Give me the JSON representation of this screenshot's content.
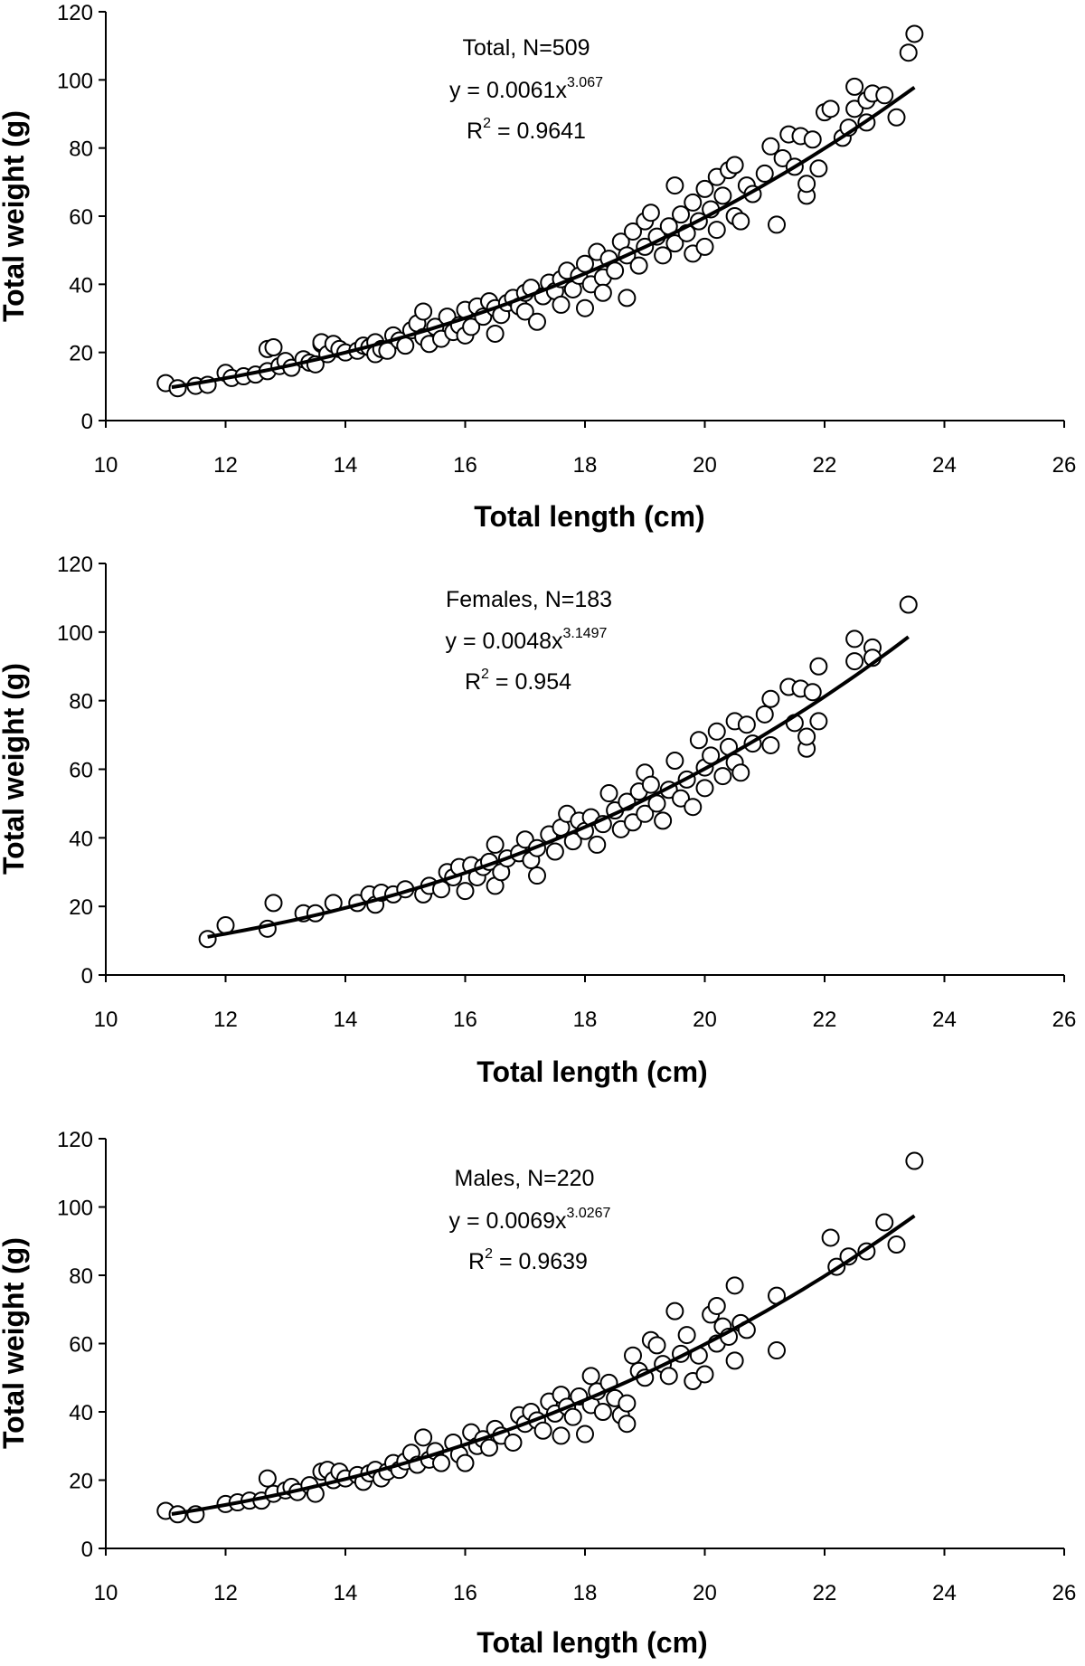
{
  "chart_data": [
    {
      "type": "scatter",
      "annotation": {
        "line1": "Total, N=509",
        "eq_prefix": "y = 0.0061x",
        "eq_exponent": "3.067",
        "r2_prefix": "R",
        "r2_sup": "2",
        "r2_value": " = 0.9641"
      },
      "xlabel": "Total length (cm)",
      "ylabel": "Total weight (g)",
      "xlim": [
        10,
        26
      ],
      "ylim": [
        0,
        120
      ],
      "xticks": [
        "10",
        "12",
        "14",
        "16",
        "18",
        "20",
        "22",
        "24",
        "26"
      ],
      "yticks": [
        "0",
        "20",
        "40",
        "60",
        "80",
        "100",
        "120"
      ],
      "grid": false,
      "fit": {
        "a": 0.0061,
        "b": 3.067,
        "x_range": [
          11.1,
          23.5
        ]
      },
      "points": [
        [
          11.0,
          11.0
        ],
        [
          11.2,
          9.5
        ],
        [
          11.5,
          10.2
        ],
        [
          11.7,
          10.5
        ],
        [
          12.0,
          14.0
        ],
        [
          12.1,
          12.5
        ],
        [
          12.3,
          13.0
        ],
        [
          12.5,
          13.5
        ],
        [
          12.7,
          14.5
        ],
        [
          12.7,
          21.0
        ],
        [
          12.8,
          21.5
        ],
        [
          12.9,
          16.0
        ],
        [
          13.0,
          17.5
        ],
        [
          13.1,
          15.5
        ],
        [
          13.3,
          18.0
        ],
        [
          13.4,
          17.0
        ],
        [
          13.5,
          16.5
        ],
        [
          13.6,
          22.5
        ],
        [
          13.6,
          23.0
        ],
        [
          13.7,
          19.5
        ],
        [
          13.8,
          22.5
        ],
        [
          13.9,
          21.0
        ],
        [
          14.0,
          20.0
        ],
        [
          14.2,
          20.5
        ],
        [
          14.3,
          22.0
        ],
        [
          14.4,
          21.5
        ],
        [
          14.5,
          23.0
        ],
        [
          14.5,
          19.5
        ],
        [
          14.6,
          21.0
        ],
        [
          14.7,
          20.5
        ],
        [
          14.8,
          25.0
        ],
        [
          14.9,
          23.5
        ],
        [
          15.0,
          22.0
        ],
        [
          15.1,
          26.5
        ],
        [
          15.2,
          28.5
        ],
        [
          15.3,
          32.0
        ],
        [
          15.3,
          24.5
        ],
        [
          15.4,
          22.5
        ],
        [
          15.5,
          27.5
        ],
        [
          15.6,
          24.0
        ],
        [
          15.7,
          30.5
        ],
        [
          15.8,
          26.0
        ],
        [
          15.9,
          28.0
        ],
        [
          16.0,
          32.5
        ],
        [
          16.0,
          25.0
        ],
        [
          16.1,
          27.5
        ],
        [
          16.2,
          33.5
        ],
        [
          16.3,
          30.5
        ],
        [
          16.4,
          35.0
        ],
        [
          16.5,
          25.5
        ],
        [
          16.5,
          33.0
        ],
        [
          16.6,
          31.0
        ],
        [
          16.7,
          34.5
        ],
        [
          16.8,
          36.0
        ],
        [
          16.9,
          33.5
        ],
        [
          17.0,
          37.5
        ],
        [
          17.0,
          32.0
        ],
        [
          17.1,
          39.0
        ],
        [
          17.2,
          29.0
        ],
        [
          17.3,
          36.5
        ],
        [
          17.4,
          40.5
        ],
        [
          17.5,
          38.0
        ],
        [
          17.6,
          41.5
        ],
        [
          17.6,
          34.0
        ],
        [
          17.7,
          44.0
        ],
        [
          17.8,
          38.5
        ],
        [
          17.9,
          42.5
        ],
        [
          18.0,
          33.0
        ],
        [
          18.0,
          46.0
        ],
        [
          18.1,
          40.0
        ],
        [
          18.2,
          49.5
        ],
        [
          18.3,
          42.0
        ],
        [
          18.3,
          37.5
        ],
        [
          18.4,
          47.5
        ],
        [
          18.5,
          44.0
        ],
        [
          18.6,
          52.5
        ],
        [
          18.7,
          36.0
        ],
        [
          18.7,
          48.5
        ],
        [
          18.8,
          55.5
        ],
        [
          18.9,
          45.5
        ],
        [
          19.0,
          51.0
        ],
        [
          19.0,
          58.5
        ],
        [
          19.1,
          61.0
        ],
        [
          19.2,
          54.0
        ],
        [
          19.3,
          48.5
        ],
        [
          19.4,
          57.0
        ],
        [
          19.5,
          69.0
        ],
        [
          19.5,
          52.0
        ],
        [
          19.6,
          60.5
        ],
        [
          19.7,
          55.0
        ],
        [
          19.8,
          49.0
        ],
        [
          19.8,
          64.0
        ],
        [
          19.9,
          58.5
        ],
        [
          20.0,
          68.0
        ],
        [
          20.0,
          51.0
        ],
        [
          20.1,
          62.0
        ],
        [
          20.2,
          71.5
        ],
        [
          20.2,
          56.0
        ],
        [
          20.3,
          66.0
        ],
        [
          20.4,
          73.5
        ],
        [
          20.5,
          60.0
        ],
        [
          20.5,
          75.0
        ],
        [
          20.6,
          58.5
        ],
        [
          20.7,
          69.0
        ],
        [
          20.8,
          66.5
        ],
        [
          21.0,
          72.5
        ],
        [
          21.1,
          80.5
        ],
        [
          21.2,
          57.5
        ],
        [
          21.3,
          77.0
        ],
        [
          21.4,
          84.0
        ],
        [
          21.5,
          74.5
        ],
        [
          21.6,
          83.5
        ],
        [
          21.7,
          66.0
        ],
        [
          21.7,
          69.5
        ],
        [
          21.8,
          82.5
        ],
        [
          21.9,
          74.0
        ],
        [
          22.0,
          90.5
        ],
        [
          22.1,
          91.5
        ],
        [
          22.3,
          83.0
        ],
        [
          22.4,
          86.0
        ],
        [
          22.5,
          98.0
        ],
        [
          22.5,
          91.5
        ],
        [
          22.7,
          94.0
        ],
        [
          22.7,
          87.5
        ],
        [
          22.8,
          96.0
        ],
        [
          23.0,
          95.5
        ],
        [
          23.2,
          89.0
        ],
        [
          23.4,
          108.0
        ],
        [
          23.5,
          113.5
        ]
      ]
    },
    {
      "type": "scatter",
      "annotation": {
        "line1": "Females, N=183",
        "eq_prefix": "y = 0.0048x",
        "eq_exponent": "3.1497",
        "r2_prefix": "R",
        "r2_sup": "2",
        "r2_value": " = 0.954"
      },
      "xlabel": "Total length (cm)",
      "ylabel": "Total weight (g)",
      "xlim": [
        10,
        26
      ],
      "ylim": [
        0,
        120
      ],
      "xticks": [
        "10",
        "12",
        "14",
        "16",
        "18",
        "20",
        "22",
        "24",
        "26"
      ],
      "yticks": [
        "0",
        "20",
        "40",
        "60",
        "80",
        "100",
        "120"
      ],
      "grid": false,
      "fit": {
        "a": 0.0048,
        "b": 3.1497,
        "x_range": [
          11.7,
          23.4
        ]
      },
      "points": [
        [
          11.7,
          10.5
        ],
        [
          12.0,
          14.5
        ],
        [
          12.7,
          13.5
        ],
        [
          12.8,
          21.0
        ],
        [
          13.3,
          18.0
        ],
        [
          13.5,
          18.0
        ],
        [
          13.8,
          21.0
        ],
        [
          14.2,
          21.0
        ],
        [
          14.4,
          23.5
        ],
        [
          14.5,
          20.5
        ],
        [
          14.6,
          24.0
        ],
        [
          14.8,
          23.5
        ],
        [
          15.0,
          25.0
        ],
        [
          15.3,
          23.5
        ],
        [
          15.4,
          26.0
        ],
        [
          15.6,
          25.0
        ],
        [
          15.7,
          30.0
        ],
        [
          15.8,
          28.5
        ],
        [
          15.9,
          31.5
        ],
        [
          16.0,
          24.5
        ],
        [
          16.1,
          32.0
        ],
        [
          16.2,
          28.5
        ],
        [
          16.3,
          31.5
        ],
        [
          16.4,
          33.0
        ],
        [
          16.5,
          26.0
        ],
        [
          16.5,
          38.0
        ],
        [
          16.6,
          30.0
        ],
        [
          16.7,
          34.0
        ],
        [
          16.9,
          35.5
        ],
        [
          17.0,
          39.5
        ],
        [
          17.1,
          33.5
        ],
        [
          17.2,
          29.0
        ],
        [
          17.2,
          37.0
        ],
        [
          17.4,
          41.0
        ],
        [
          17.5,
          36.0
        ],
        [
          17.6,
          43.0
        ],
        [
          17.7,
          47.0
        ],
        [
          17.8,
          39.0
        ],
        [
          17.9,
          45.0
        ],
        [
          18.0,
          42.0
        ],
        [
          18.1,
          46.0
        ],
        [
          18.2,
          38.0
        ],
        [
          18.3,
          44.0
        ],
        [
          18.4,
          53.0
        ],
        [
          18.5,
          48.0
        ],
        [
          18.6,
          42.5
        ],
        [
          18.7,
          50.5
        ],
        [
          18.8,
          44.5
        ],
        [
          18.9,
          53.5
        ],
        [
          19.0,
          59.0
        ],
        [
          19.0,
          47.0
        ],
        [
          19.1,
          55.5
        ],
        [
          19.2,
          50.0
        ],
        [
          19.3,
          45.0
        ],
        [
          19.4,
          54.0
        ],
        [
          19.5,
          62.5
        ],
        [
          19.6,
          51.5
        ],
        [
          19.7,
          57.0
        ],
        [
          19.8,
          49.0
        ],
        [
          19.9,
          68.5
        ],
        [
          20.0,
          60.5
        ],
        [
          20.0,
          54.5
        ],
        [
          20.1,
          64.0
        ],
        [
          20.2,
          71.0
        ],
        [
          20.3,
          58.0
        ],
        [
          20.4,
          66.5
        ],
        [
          20.5,
          74.0
        ],
        [
          20.5,
          62.0
        ],
        [
          20.6,
          59.0
        ],
        [
          20.7,
          73.0
        ],
        [
          20.8,
          67.5
        ],
        [
          21.0,
          76.0
        ],
        [
          21.1,
          80.5
        ],
        [
          21.1,
          67.0
        ],
        [
          21.4,
          84.0
        ],
        [
          21.5,
          73.5
        ],
        [
          21.6,
          83.5
        ],
        [
          21.7,
          66.0
        ],
        [
          21.7,
          69.5
        ],
        [
          21.8,
          82.5
        ],
        [
          21.9,
          74.0
        ],
        [
          21.9,
          90.0
        ],
        [
          22.5,
          98.0
        ],
        [
          22.5,
          91.5
        ],
        [
          22.8,
          95.5
        ],
        [
          22.8,
          92.5
        ],
        [
          23.4,
          108.0
        ]
      ]
    },
    {
      "type": "scatter",
      "annotation": {
        "line1": "Males, N=220",
        "eq_prefix": "y = 0.0069x",
        "eq_exponent": "3.0267",
        "r2_prefix": "R",
        "r2_sup": "2",
        "r2_value": " = 0.9639"
      },
      "xlabel": "Total length (cm)",
      "ylabel": "Total weight (g)",
      "xlim": [
        10,
        26
      ],
      "ylim": [
        0,
        120
      ],
      "xticks": [
        "10",
        "12",
        "14",
        "16",
        "18",
        "20",
        "22",
        "24",
        "26"
      ],
      "yticks": [
        "0",
        "20",
        "40",
        "60",
        "80",
        "100",
        "120"
      ],
      "grid": false,
      "fit": {
        "a": 0.0069,
        "b": 3.0267,
        "x_range": [
          11.1,
          23.5
        ]
      },
      "points": [
        [
          11.0,
          11.0
        ],
        [
          11.2,
          10.0
        ],
        [
          11.5,
          10.0
        ],
        [
          12.0,
          13.0
        ],
        [
          12.2,
          13.5
        ],
        [
          12.4,
          14.0
        ],
        [
          12.6,
          14.0
        ],
        [
          12.7,
          20.5
        ],
        [
          12.8,
          16.0
        ],
        [
          13.0,
          17.0
        ],
        [
          13.1,
          18.0
        ],
        [
          13.2,
          16.5
        ],
        [
          13.4,
          18.5
        ],
        [
          13.5,
          16.0
        ],
        [
          13.6,
          22.5
        ],
        [
          13.7,
          23.0
        ],
        [
          13.8,
          20.0
        ],
        [
          13.9,
          22.5
        ],
        [
          14.0,
          20.5
        ],
        [
          14.2,
          21.5
        ],
        [
          14.3,
          19.5
        ],
        [
          14.4,
          22.0
        ],
        [
          14.5,
          23.0
        ],
        [
          14.6,
          20.5
        ],
        [
          14.7,
          22.5
        ],
        [
          14.8,
          25.0
        ],
        [
          14.9,
          23.0
        ],
        [
          15.0,
          25.5
        ],
        [
          15.1,
          28.0
        ],
        [
          15.2,
          24.5
        ],
        [
          15.3,
          32.5
        ],
        [
          15.4,
          26.0
        ],
        [
          15.5,
          28.5
        ],
        [
          15.6,
          25.0
        ],
        [
          15.8,
          31.0
        ],
        [
          15.9,
          27.5
        ],
        [
          16.0,
          25.0
        ],
        [
          16.1,
          34.0
        ],
        [
          16.2,
          30.0
        ],
        [
          16.3,
          32.0
        ],
        [
          16.4,
          29.5
        ],
        [
          16.5,
          35.0
        ],
        [
          16.6,
          33.0
        ],
        [
          16.8,
          31.0
        ],
        [
          16.9,
          39.0
        ],
        [
          17.0,
          36.5
        ],
        [
          17.1,
          40.0
        ],
        [
          17.2,
          37.5
        ],
        [
          17.3,
          34.5
        ],
        [
          17.4,
          43.0
        ],
        [
          17.5,
          39.5
        ],
        [
          17.6,
          33.0
        ],
        [
          17.6,
          45.0
        ],
        [
          17.7,
          41.5
        ],
        [
          17.8,
          38.5
        ],
        [
          17.9,
          44.5
        ],
        [
          18.0,
          33.5
        ],
        [
          18.1,
          42.0
        ],
        [
          18.1,
          50.5
        ],
        [
          18.2,
          46.0
        ],
        [
          18.3,
          40.0
        ],
        [
          18.4,
          48.5
        ],
        [
          18.5,
          44.0
        ],
        [
          18.6,
          39.0
        ],
        [
          18.7,
          36.5
        ],
        [
          18.7,
          42.5
        ],
        [
          18.8,
          56.5
        ],
        [
          18.9,
          52.0
        ],
        [
          19.0,
          50.0
        ],
        [
          19.1,
          61.0
        ],
        [
          19.2,
          59.5
        ],
        [
          19.3,
          54.0
        ],
        [
          19.4,
          50.5
        ],
        [
          19.5,
          69.5
        ],
        [
          19.6,
          57.0
        ],
        [
          19.7,
          62.5
        ],
        [
          19.8,
          49.0
        ],
        [
          19.9,
          56.5
        ],
        [
          20.0,
          51.0
        ],
        [
          20.1,
          68.5
        ],
        [
          20.2,
          71.0
        ],
        [
          20.2,
          60.0
        ],
        [
          20.3,
          65.0
        ],
        [
          20.4,
          62.0
        ],
        [
          20.5,
          55.0
        ],
        [
          20.5,
          77.0
        ],
        [
          20.6,
          66.0
        ],
        [
          20.7,
          64.0
        ],
        [
          21.2,
          74.0
        ],
        [
          21.2,
          58.0
        ],
        [
          22.1,
          91.0
        ],
        [
          22.2,
          82.5
        ],
        [
          22.4,
          85.5
        ],
        [
          22.7,
          87.0
        ],
        [
          23.0,
          95.5
        ],
        [
          23.2,
          89.0
        ],
        [
          23.5,
          113.5
        ]
      ]
    }
  ]
}
